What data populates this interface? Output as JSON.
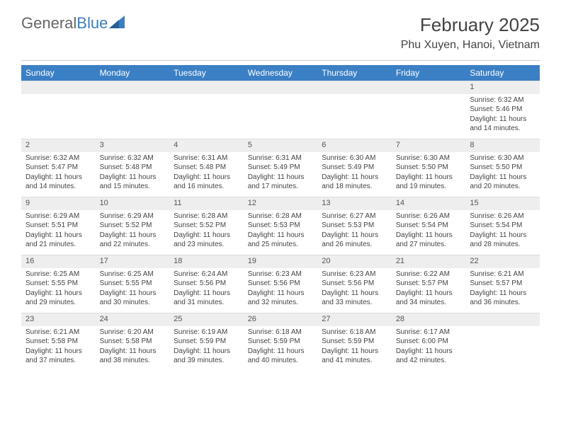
{
  "brand": {
    "part1": "General",
    "part2": "Blue"
  },
  "title": "February 2025",
  "location": "Phu Xuyen, Hanoi, Vietnam",
  "colors": {
    "header_bg": "#3b7fc4",
    "header_text": "#ffffff",
    "daynum_bg": "#eeeeee",
    "text": "#444444",
    "divider": "#cccccc"
  },
  "weekdays": [
    "Sunday",
    "Monday",
    "Tuesday",
    "Wednesday",
    "Thursday",
    "Friday",
    "Saturday"
  ],
  "weeks": [
    {
      "nums": [
        "",
        "",
        "",
        "",
        "",
        "",
        "1"
      ],
      "cells": [
        "",
        "",
        "",
        "",
        "",
        "",
        "Sunrise: 6:32 AM\nSunset: 5:46 PM\nDaylight: 11 hours and 14 minutes."
      ]
    },
    {
      "nums": [
        "2",
        "3",
        "4",
        "5",
        "6",
        "7",
        "8"
      ],
      "cells": [
        "Sunrise: 6:32 AM\nSunset: 5:47 PM\nDaylight: 11 hours and 14 minutes.",
        "Sunrise: 6:32 AM\nSunset: 5:48 PM\nDaylight: 11 hours and 15 minutes.",
        "Sunrise: 6:31 AM\nSunset: 5:48 PM\nDaylight: 11 hours and 16 minutes.",
        "Sunrise: 6:31 AM\nSunset: 5:49 PM\nDaylight: 11 hours and 17 minutes.",
        "Sunrise: 6:30 AM\nSunset: 5:49 PM\nDaylight: 11 hours and 18 minutes.",
        "Sunrise: 6:30 AM\nSunset: 5:50 PM\nDaylight: 11 hours and 19 minutes.",
        "Sunrise: 6:30 AM\nSunset: 5:50 PM\nDaylight: 11 hours and 20 minutes."
      ]
    },
    {
      "nums": [
        "9",
        "10",
        "11",
        "12",
        "13",
        "14",
        "15"
      ],
      "cells": [
        "Sunrise: 6:29 AM\nSunset: 5:51 PM\nDaylight: 11 hours and 21 minutes.",
        "Sunrise: 6:29 AM\nSunset: 5:52 PM\nDaylight: 11 hours and 22 minutes.",
        "Sunrise: 6:28 AM\nSunset: 5:52 PM\nDaylight: 11 hours and 23 minutes.",
        "Sunrise: 6:28 AM\nSunset: 5:53 PM\nDaylight: 11 hours and 25 minutes.",
        "Sunrise: 6:27 AM\nSunset: 5:53 PM\nDaylight: 11 hours and 26 minutes.",
        "Sunrise: 6:26 AM\nSunset: 5:54 PM\nDaylight: 11 hours and 27 minutes.",
        "Sunrise: 6:26 AM\nSunset: 5:54 PM\nDaylight: 11 hours and 28 minutes."
      ]
    },
    {
      "nums": [
        "16",
        "17",
        "18",
        "19",
        "20",
        "21",
        "22"
      ],
      "cells": [
        "Sunrise: 6:25 AM\nSunset: 5:55 PM\nDaylight: 11 hours and 29 minutes.",
        "Sunrise: 6:25 AM\nSunset: 5:55 PM\nDaylight: 11 hours and 30 minutes.",
        "Sunrise: 6:24 AM\nSunset: 5:56 PM\nDaylight: 11 hours and 31 minutes.",
        "Sunrise: 6:23 AM\nSunset: 5:56 PM\nDaylight: 11 hours and 32 minutes.",
        "Sunrise: 6:23 AM\nSunset: 5:56 PM\nDaylight: 11 hours and 33 minutes.",
        "Sunrise: 6:22 AM\nSunset: 5:57 PM\nDaylight: 11 hours and 34 minutes.",
        "Sunrise: 6:21 AM\nSunset: 5:57 PM\nDaylight: 11 hours and 36 minutes."
      ]
    },
    {
      "nums": [
        "23",
        "24",
        "25",
        "26",
        "27",
        "28",
        ""
      ],
      "cells": [
        "Sunrise: 6:21 AM\nSunset: 5:58 PM\nDaylight: 11 hours and 37 minutes.",
        "Sunrise: 6:20 AM\nSunset: 5:58 PM\nDaylight: 11 hours and 38 minutes.",
        "Sunrise: 6:19 AM\nSunset: 5:59 PM\nDaylight: 11 hours and 39 minutes.",
        "Sunrise: 6:18 AM\nSunset: 5:59 PM\nDaylight: 11 hours and 40 minutes.",
        "Sunrise: 6:18 AM\nSunset: 5:59 PM\nDaylight: 11 hours and 41 minutes.",
        "Sunrise: 6:17 AM\nSunset: 6:00 PM\nDaylight: 11 hours and 42 minutes.",
        ""
      ]
    }
  ]
}
